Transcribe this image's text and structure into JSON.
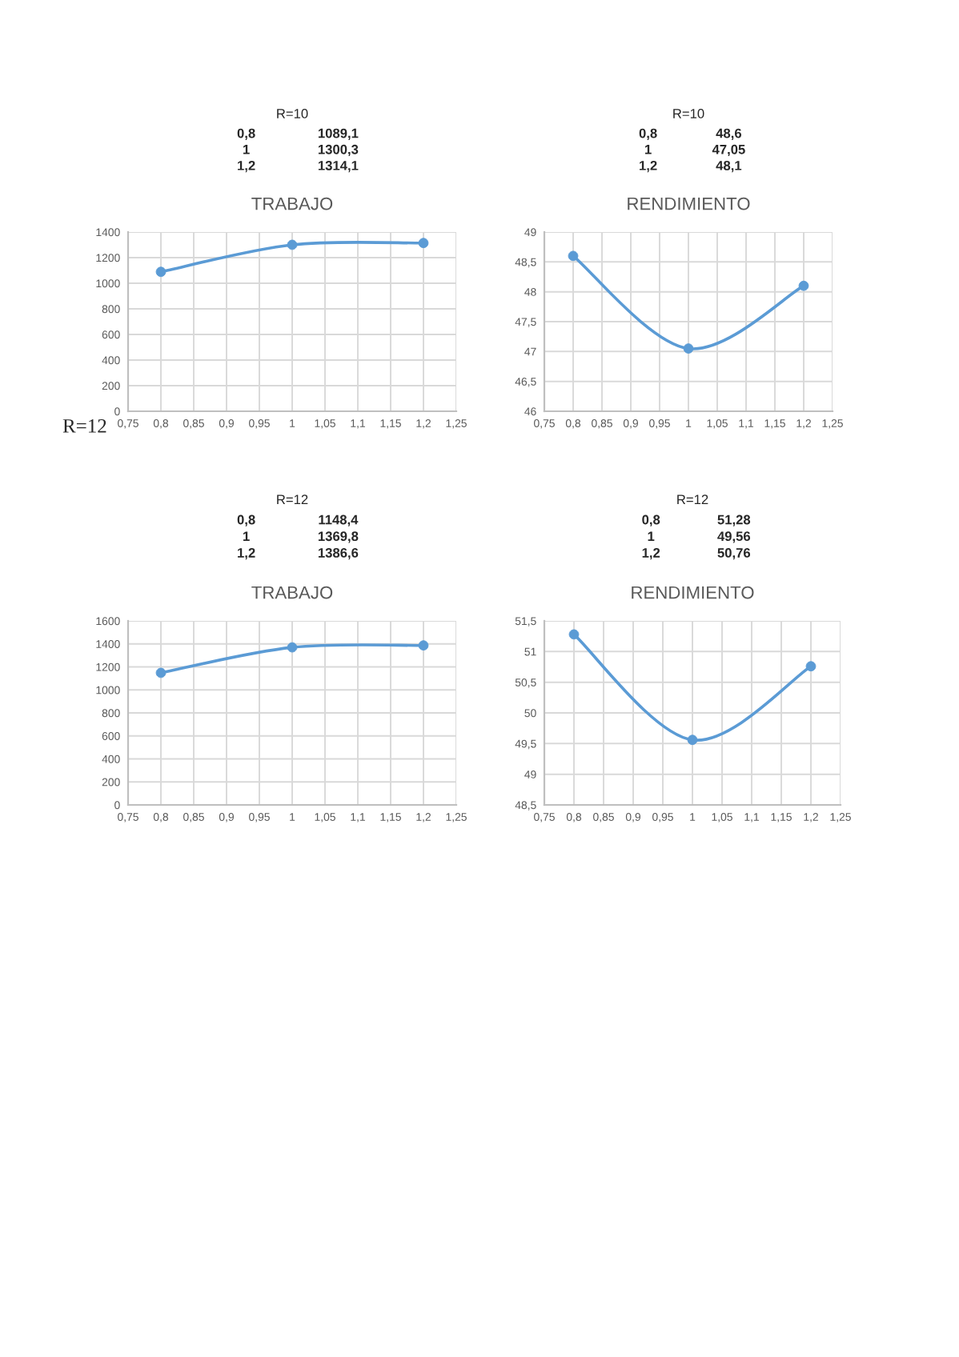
{
  "chart_data": [
    {
      "type": "line",
      "title": "TRABAJO",
      "subtitle": "R=10",
      "x": [
        0.8,
        1,
        1.2
      ],
      "annotations": [
        "0,8",
        "1089,1",
        "1",
        "1300,3",
        "1,2",
        "1314,1"
      ],
      "series": [
        {
          "color": "#5b9bd5",
          "values": [
            1089.1,
            1300.3,
            1314.1
          ]
        }
      ],
      "marker": "circle",
      "grid": true,
      "xlim": [
        0.75,
        1.25
      ],
      "xticks": [
        {
          "value": 0.75,
          "label": "0,75"
        },
        {
          "value": 0.8,
          "label": "0,8"
        },
        {
          "value": 0.85,
          "label": "0,85"
        },
        {
          "value": 0.9,
          "label": "0,9"
        },
        {
          "value": 0.95,
          "label": "0,95"
        },
        1,
        {
          "value": 1.05,
          "label": "1,05"
        },
        {
          "value": 1.1,
          "label": "1,1"
        },
        {
          "value": 1.15,
          "label": "1,15"
        },
        {
          "value": 1.2,
          "label": "1,2"
        },
        {
          "value": 1.25,
          "label": "1,25"
        }
      ],
      "ylim": [
        0,
        1400
      ],
      "yticks": [
        0,
        200,
        400,
        600,
        800,
        1000,
        1200,
        1400
      ]
    },
    {
      "type": "line",
      "title": "RENDIMIENTO",
      "subtitle": "R=10",
      "x": [
        0.8,
        1,
        1.2
      ],
      "annotations": [
        "0,8",
        "48,6",
        "1",
        "47,05",
        "1,2",
        "48,1"
      ],
      "series": [
        {
          "color": "#5b9bd5",
          "values": [
            48.6,
            47.05,
            48.1
          ]
        }
      ],
      "marker": "circle",
      "grid": true,
      "xlim": [
        0.75,
        1.25
      ],
      "xticks": [
        {
          "value": 0.75,
          "label": "0,75"
        },
        {
          "value": 0.8,
          "label": "0,8"
        },
        {
          "value": 0.85,
          "label": "0,85"
        },
        {
          "value": 0.9,
          "label": "0,9"
        },
        {
          "value": 0.95,
          "label": "0,95"
        },
        1,
        {
          "value": 1.05,
          "label": "1,05"
        },
        {
          "value": 1.1,
          "label": "1,1"
        },
        {
          "value": 1.15,
          "label": "1,15"
        },
        {
          "value": 1.2,
          "label": "1,2"
        },
        {
          "value": 1.25,
          "label": "1,25"
        }
      ],
      "ylim": [
        46,
        49
      ],
      "yticks": [
        46,
        {
          "value": 46.5,
          "label": "46,5"
        },
        47,
        {
          "value": 47.5,
          "label": "47,5"
        },
        48,
        {
          "value": 48.5,
          "label": "48,5"
        },
        49
      ]
    },
    {
      "type": "line",
      "title": "TRABAJO",
      "subtitle": "R=12",
      "annotations": [
        "R=12",
        "0,8",
        "1148,4",
        "1",
        "1369,8",
        "1,2",
        "1386,6"
      ],
      "x": [
        0.8,
        1,
        1.2
      ],
      "series": [
        {
          "color": "#5b9bd5",
          "values": [
            1148.4,
            1369.8,
            1386.6
          ]
        }
      ],
      "marker": "circle",
      "grid": true,
      "xlim": [
        0.75,
        1.25
      ],
      "xticks": [
        {
          "value": 0.75,
          "label": "0,75"
        },
        {
          "value": 0.8,
          "label": "0,8"
        },
        {
          "value": 0.85,
          "label": "0,85"
        },
        {
          "value": 0.9,
          "label": "0,9"
        },
        {
          "value": 0.95,
          "label": "0,95"
        },
        1,
        {
          "value": 1.05,
          "label": "1,05"
        },
        {
          "value": 1.1,
          "label": "1,1"
        },
        {
          "value": 1.15,
          "label": "1,15"
        },
        {
          "value": 1.2,
          "label": "1,2"
        },
        {
          "value": 1.25,
          "label": "1,25"
        }
      ],
      "ylim": [
        0,
        1600
      ],
      "yticks": [
        0,
        200,
        400,
        600,
        800,
        1000,
        1200,
        1400,
        1600
      ]
    },
    {
      "type": "line",
      "title": "RENDIMIENTO",
      "subtitle": "R=12",
      "x": [
        0.8,
        1,
        1.2
      ],
      "annotations": [
        "0,8",
        "51,28",
        "1",
        "49,56",
        "1,2",
        "50,76"
      ],
      "series": [
        {
          "color": "#5b9bd5",
          "values": [
            51.28,
            49.56,
            50.76
          ]
        }
      ],
      "marker": "circle",
      "grid": true,
      "xlim": [
        0.75,
        1.25
      ],
      "xticks": [
        {
          "value": 0.75,
          "label": "0,75"
        },
        {
          "value": 0.8,
          "label": "0,8"
        },
        {
          "value": 0.85,
          "label": "0,85"
        },
        {
          "value": 0.9,
          "label": "0,9"
        },
        {
          "value": 0.95,
          "label": "0,95"
        },
        1,
        {
          "value": 1.05,
          "label": "1,05"
        },
        {
          "value": 1.1,
          "label": "1,1"
        },
        {
          "value": 1.15,
          "label": "1,15"
        },
        {
          "value": 1.2,
          "label": "1,2"
        },
        {
          "value": 1.25,
          "label": "1,25"
        }
      ],
      "ylim": [
        48.5,
        51.5
      ],
      "yticks": [
        {
          "value": 48.5,
          "label": "48,5"
        },
        49,
        {
          "value": 49.5,
          "label": "49,5"
        },
        50,
        {
          "value": 50.5,
          "label": "50,5"
        },
        51,
        {
          "value": 51.5,
          "label": "51,5"
        }
      ]
    }
  ]
}
